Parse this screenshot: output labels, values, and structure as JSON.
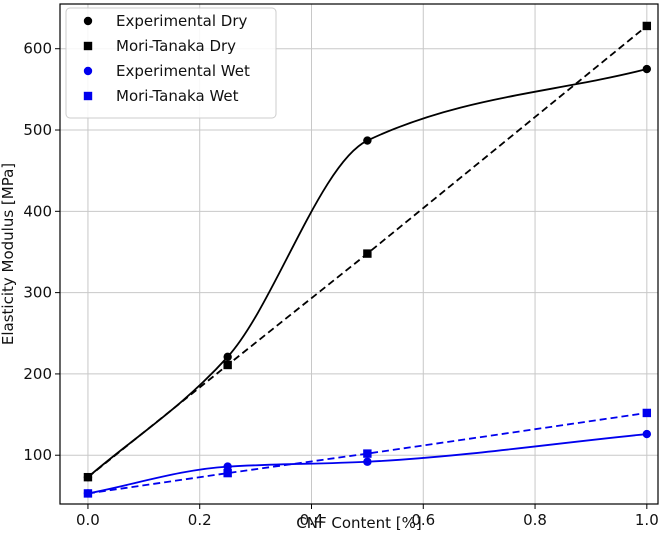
{
  "chart_data": {
    "type": "line",
    "title": "",
    "xlabel": "CNF Content [%]",
    "ylabel": "Elasticity Modulus [MPa]",
    "xlim": [
      -0.05,
      1.02
    ],
    "ylim": [
      40,
      655
    ],
    "grid": true,
    "legend_position": "top-left",
    "xticks": [
      0.0,
      0.2,
      0.4,
      0.6,
      0.8,
      1.0
    ],
    "xtick_labels": [
      "0.0",
      "0.2",
      "0.4",
      "0.6",
      "0.8",
      "1.0"
    ],
    "yticks": [
      100,
      200,
      300,
      400,
      500,
      600
    ],
    "ytick_labels": [
      "100",
      "200",
      "300",
      "400",
      "500",
      "600"
    ],
    "series": [
      {
        "name": "Experimental Dry",
        "color": "#000000",
        "marker": "circle",
        "line": "smooth-solid",
        "x": [
          0.0,
          0.25,
          0.5,
          1.0
        ],
        "y": [
          73,
          221,
          487,
          575
        ]
      },
      {
        "name": "Mori-Tanaka Dry",
        "color": "#000000",
        "marker": "square",
        "line": "dashed",
        "x": [
          0.0,
          0.25,
          0.5,
          1.0
        ],
        "y": [
          73,
          211,
          348,
          628
        ]
      },
      {
        "name": "Experimental Wet",
        "color": "#0000ee",
        "marker": "circle",
        "line": "smooth-solid",
        "x": [
          0.0,
          0.25,
          0.5,
          1.0
        ],
        "y": [
          53,
          86,
          92,
          126
        ]
      },
      {
        "name": "Mori-Tanaka Wet",
        "color": "#0000ee",
        "marker": "square",
        "line": "dashed",
        "x": [
          0.0,
          0.25,
          0.5,
          1.0
        ],
        "y": [
          53,
          78,
          102,
          152
        ]
      }
    ]
  }
}
